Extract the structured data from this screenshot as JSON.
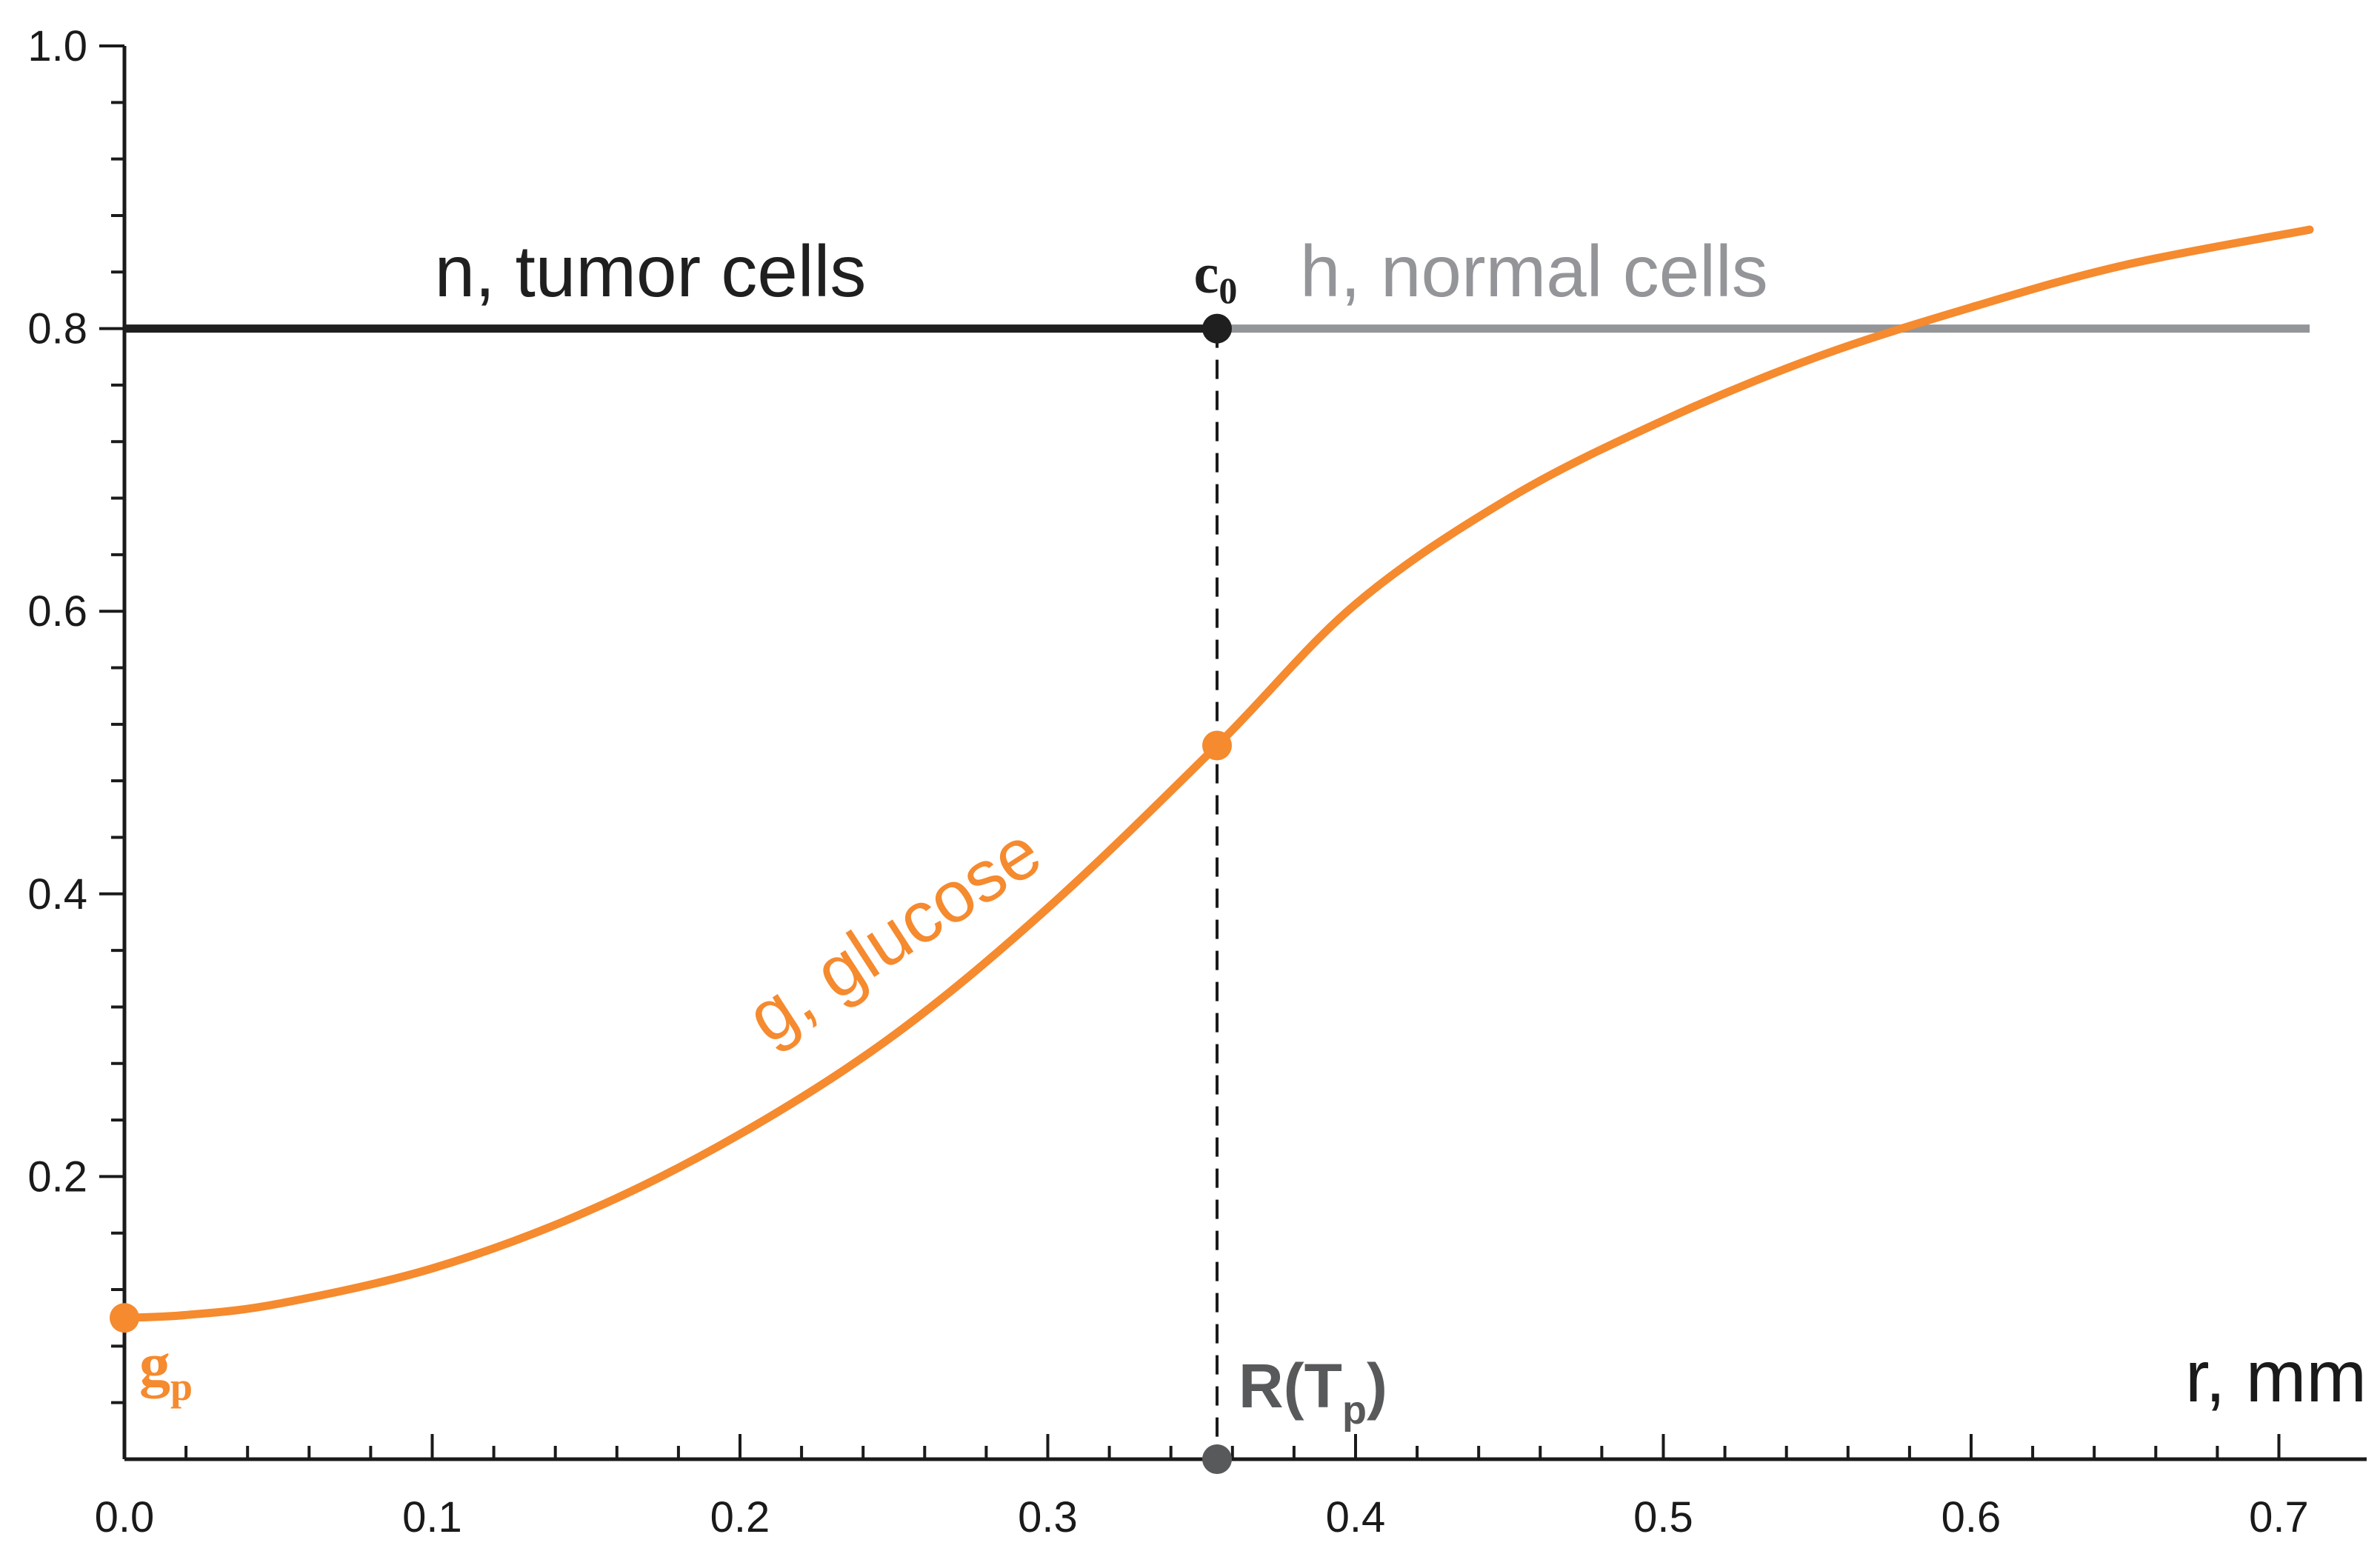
{
  "chart_data": {
    "type": "line",
    "title": "",
    "xlabel": "r, mm",
    "ylabel": "",
    "xlim": [
      0,
      0.72
    ],
    "ylim": [
      0,
      1.0
    ],
    "x_ticks": [
      0.0,
      0.1,
      0.2,
      0.3,
      0.4,
      0.5,
      0.6,
      0.7
    ],
    "x_tick_labels": [
      "0.0",
      "0.1",
      "0.2",
      "0.3",
      "0.4",
      "0.5",
      "0.6",
      "0.7"
    ],
    "y_ticks": [
      0.2,
      0.4,
      0.6,
      0.8,
      1.0
    ],
    "y_tick_labels": [
      "0.2",
      "0.4",
      "0.6",
      "0.8",
      "1.0"
    ],
    "series": [
      {
        "name": "n, tumor cells",
        "color": "#1f1f1f",
        "x": [
          0.0,
          0.355
        ],
        "y": [
          0.8,
          0.8
        ]
      },
      {
        "name": "h, normal cells",
        "color": "#939598",
        "x": [
          0.355,
          0.71
        ],
        "y": [
          0.8,
          0.8
        ]
      },
      {
        "name": "g, glucose",
        "color": "#f58a2e",
        "x": [
          0.0,
          0.02,
          0.05,
          0.1,
          0.15,
          0.2,
          0.25,
          0.3,
          0.355,
          0.4,
          0.45,
          0.5,
          0.55,
          0.6,
          0.65,
          0.71
        ],
        "y": [
          0.1,
          0.102,
          0.11,
          0.135,
          0.175,
          0.23,
          0.3,
          0.39,
          0.505,
          0.605,
          0.68,
          0.735,
          0.78,
          0.815,
          0.845,
          0.87
        ]
      }
    ],
    "annotations": {
      "c0": {
        "base": "c",
        "sub": "0",
        "x": 0.355,
        "y": 0.8,
        "color": "#1f1f1f"
      },
      "gp": {
        "base": "g",
        "sub": "p",
        "x": 0.0,
        "y": 0.1,
        "color": "#f58a2e"
      },
      "rtp": {
        "base": "R(T",
        "sub": "p",
        "close": ")",
        "x": 0.355,
        "y": 0.0,
        "color": "#58595b"
      },
      "glucose_mid": {
        "x": 0.355,
        "y": 0.505,
        "color": "#f58a2e"
      },
      "dashed_line_x": 0.355
    },
    "grid": false,
    "legend": "none"
  }
}
